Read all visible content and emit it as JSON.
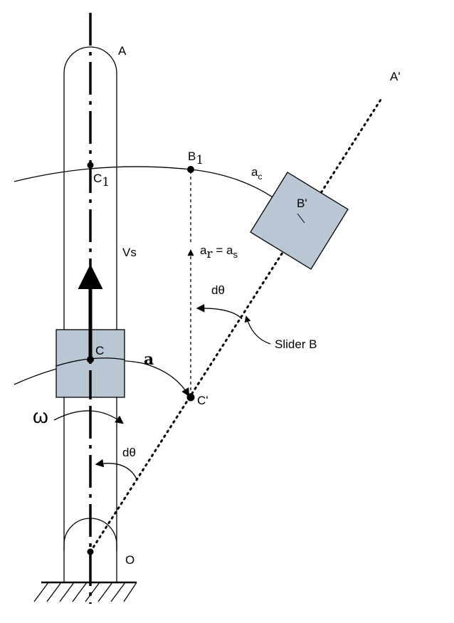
{
  "labels": {
    "A": "A",
    "A_prime": "A'",
    "B1": "B",
    "B1_sub": "1",
    "B_prime": "B'",
    "C1": "C",
    "C1_sub": "1",
    "C": "C",
    "C_prime": "C'",
    "O": "O",
    "Vs": "Vs",
    "ac": "a",
    "ac_sub": "c",
    "ar": "a",
    "ar_sub": "r",
    "ar_eq": " = a",
    "as_sub": "s",
    "a": "a",
    "omega": "ω",
    "dtheta_upper": "dθ",
    "dtheta_lower": "dθ",
    "slider_b": "Slider B"
  },
  "colors": {
    "block_fill": "#b9c6d3",
    "line": "#000000"
  }
}
